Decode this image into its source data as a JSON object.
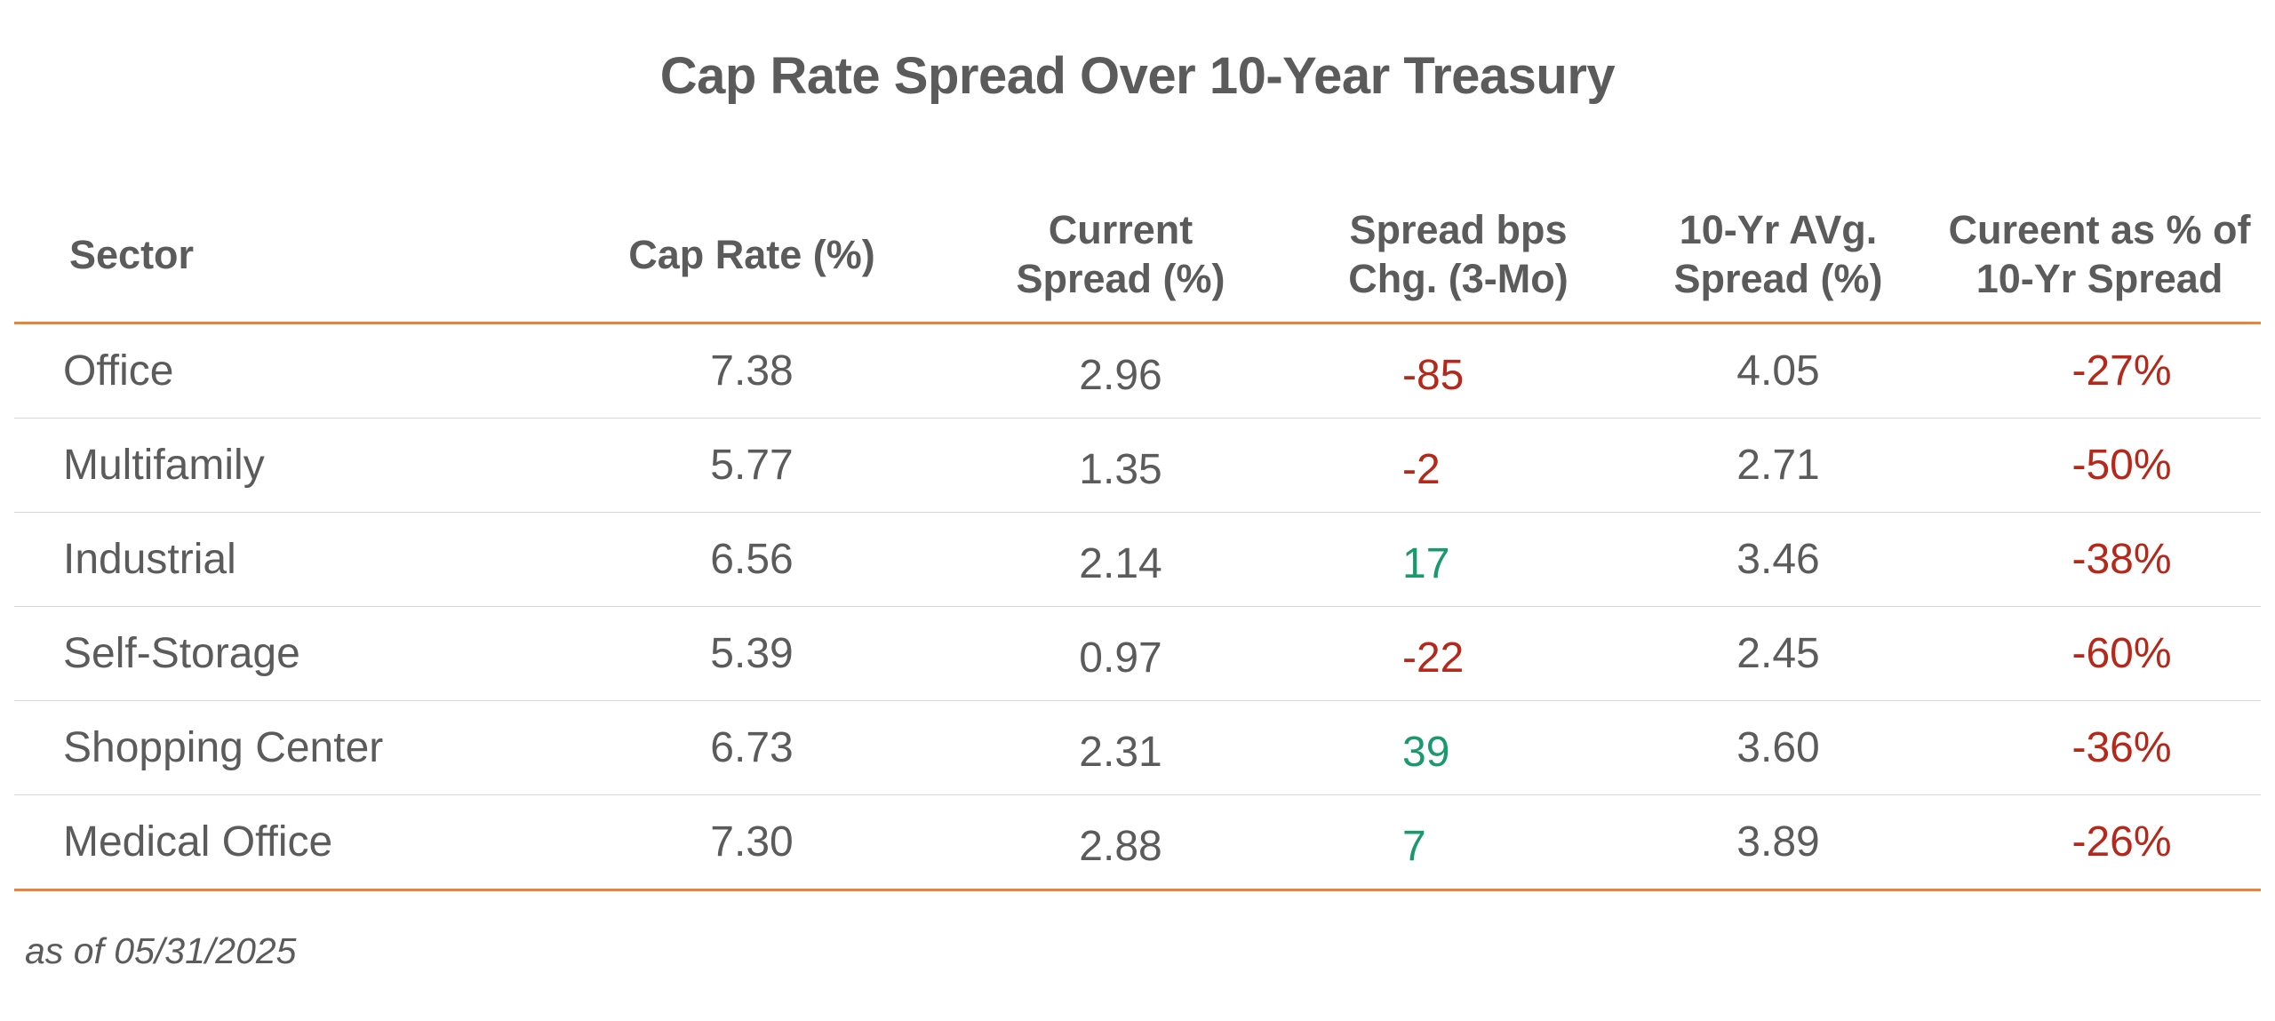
{
  "chart_data": {
    "type": "table",
    "title": "Cap Rate Spread Over 10-Year Treasury",
    "columns": [
      [
        "Sector"
      ],
      [
        "Cap Rate (%)"
      ],
      [
        "Current",
        "Spread (%)"
      ],
      [
        "Spread bps",
        "Chg. (3-Mo)"
      ],
      [
        "10-Yr AVg.",
        "Spread (%)"
      ],
      [
        "Cureent as % of",
        "10-Yr Spread"
      ]
    ],
    "rows": [
      {
        "sector": "Office",
        "cap_rate": "7.38",
        "current_spread": "2.96",
        "bps_chg": "-85",
        "avg_spread": "4.05",
        "pct_of_avg": "-27%"
      },
      {
        "sector": "Multifamily",
        "cap_rate": "5.77",
        "current_spread": "1.35",
        "bps_chg": "-2",
        "avg_spread": "2.71",
        "pct_of_avg": "-50%"
      },
      {
        "sector": "Industrial",
        "cap_rate": "6.56",
        "current_spread": "2.14",
        "bps_chg": "17",
        "avg_spread": "3.46",
        "pct_of_avg": "-38%"
      },
      {
        "sector": "Self-Storage",
        "cap_rate": "5.39",
        "current_spread": "0.97",
        "bps_chg": "-22",
        "avg_spread": "2.45",
        "pct_of_avg": "-60%"
      },
      {
        "sector": "Shopping Center",
        "cap_rate": "6.73",
        "current_spread": "2.31",
        "bps_chg": "39",
        "avg_spread": "3.60",
        "pct_of_avg": "-36%"
      },
      {
        "sector": "Medical Office",
        "cap_rate": "7.30",
        "current_spread": "2.88",
        "bps_chg": "7",
        "avg_spread": "3.89",
        "pct_of_avg": "-26%"
      }
    ],
    "footnote": "as of 05/31/2025"
  },
  "colors": {
    "text": "#5b5b5b",
    "negative": "#b5281a",
    "positive": "#1a9a6c",
    "rule": "#e8833a",
    "row_divider": "#d6d6d6"
  }
}
